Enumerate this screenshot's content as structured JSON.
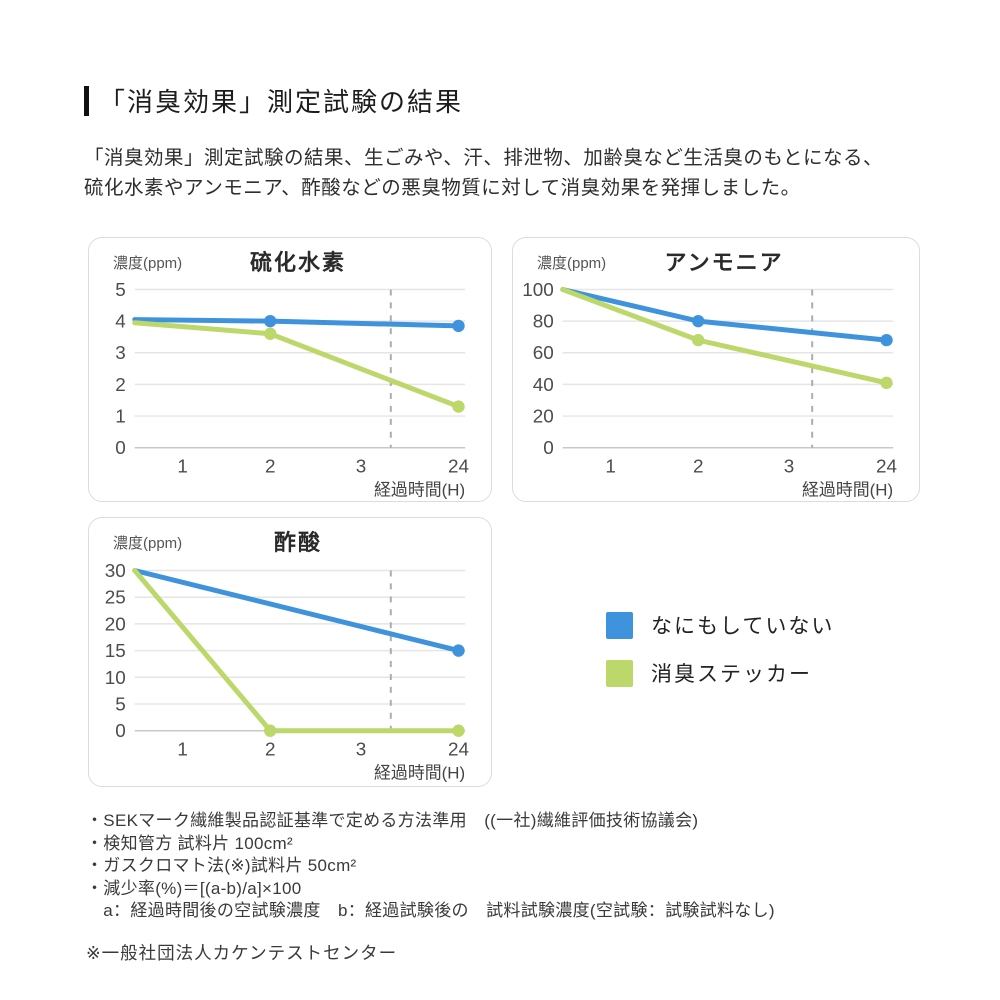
{
  "page": {
    "title": "「消臭効果」測定試験の結果",
    "intro": "「消臭効果」測定試験の結果、生ごみや、汗、排泄物、加齢臭など生活臭のもとになる、\n硫化水素やアンモニア、酢酸などの悪臭物質に対して消臭効果を発揮しました。"
  },
  "colors": {
    "blue": "#3e93dc",
    "green": "#bcd76a",
    "grid": "#e5e5e5",
    "axis": "#c8c8c8",
    "dash": "#adadad"
  },
  "legend": {
    "items": [
      {
        "label": "なにもしていない",
        "color": "blue"
      },
      {
        "label": "消臭ステッカー",
        "color": "green"
      }
    ]
  },
  "chart_data": [
    {
      "type": "line",
      "title": "硫化水素",
      "ylabel": "濃度(ppm)",
      "xlabel": "経過時間(H)",
      "y_ticks": [
        5,
        4,
        3,
        2,
        1,
        0
      ],
      "y_max": 5,
      "x_ticks": [
        "1",
        "2",
        "3",
        "24"
      ],
      "x_tick_f": [
        0.145,
        0.41,
        0.685,
        0.98
      ],
      "dash_f": 0.775,
      "grid": true,
      "series": [
        {
          "name": "なにもしていない",
          "color": "blue",
          "points": [
            {
              "t": 0,
              "v": 4.05,
              "f": 0,
              "dot": false
            },
            {
              "t": 2,
              "v": 4.0,
              "f": 0.41,
              "dot": true
            },
            {
              "t": 24,
              "v": 3.85,
              "f": 0.98,
              "dot": true
            }
          ]
        },
        {
          "name": "消臭ステッカー",
          "color": "green",
          "points": [
            {
              "t": 0,
              "v": 3.95,
              "f": 0,
              "dot": false
            },
            {
              "t": 2,
              "v": 3.6,
              "f": 0.41,
              "dot": true
            },
            {
              "t": 24,
              "v": 1.3,
              "f": 0.98,
              "dot": true
            }
          ]
        }
      ]
    },
    {
      "type": "line",
      "title": "アンモニア",
      "ylabel": "濃度(ppm)",
      "xlabel": "経過時間(H)",
      "y_ticks": [
        100,
        80,
        60,
        40,
        20,
        0
      ],
      "y_max": 100,
      "x_ticks": [
        "1",
        "2",
        "3",
        "24"
      ],
      "x_tick_f": [
        0.145,
        0.41,
        0.685,
        0.98
      ],
      "dash_f": 0.755,
      "grid": true,
      "series": [
        {
          "name": "なにもしていない",
          "color": "blue",
          "points": [
            {
              "t": 0,
              "v": 100,
              "f": 0,
              "dot": false
            },
            {
              "t": 2,
              "v": 80,
              "f": 0.41,
              "dot": true
            },
            {
              "t": 24,
              "v": 68,
              "f": 0.98,
              "dot": true
            }
          ]
        },
        {
          "name": "消臭ステッカー",
          "color": "green",
          "points": [
            {
              "t": 0,
              "v": 100,
              "f": 0,
              "dot": false
            },
            {
              "t": 2,
              "v": 68,
              "f": 0.41,
              "dot": true
            },
            {
              "t": 24,
              "v": 41,
              "f": 0.98,
              "dot": true
            }
          ]
        }
      ]
    },
    {
      "type": "line",
      "title": "酢酸",
      "ylabel": "濃度(ppm)",
      "xlabel": "経過時間(H)",
      "y_ticks": [
        30,
        25,
        20,
        15,
        10,
        5,
        0
      ],
      "y_max": 30,
      "x_ticks": [
        "1",
        "2",
        "3",
        "24"
      ],
      "x_tick_f": [
        0.145,
        0.41,
        0.685,
        0.98
      ],
      "dash_f": 0.775,
      "grid": true,
      "series": [
        {
          "name": "なにもしていない",
          "color": "blue",
          "points": [
            {
              "t": 0,
              "v": 30,
              "f": 0,
              "dot": false
            },
            {
              "t": 24,
              "v": 15,
              "f": 0.98,
              "dot": true
            }
          ]
        },
        {
          "name": "消臭ステッカー",
          "color": "green",
          "points": [
            {
              "t": 0,
              "v": 30,
              "f": 0,
              "dot": false
            },
            {
              "t": 2,
              "v": 0,
              "f": 0.41,
              "dot": true
            },
            {
              "t": 24,
              "v": 0,
              "f": 0.98,
              "dot": true
            }
          ]
        }
      ]
    }
  ],
  "footnotes": {
    "lines": [
      "・SEKマーク繊維製品認証基準で定める方法準用　((一社)繊維評価技術協議会)",
      "・検知管方 試料片 100cm²",
      "・ガスクロマト法(※)試料片 50cm²",
      "・減少率(%)＝[(a-b)/a]×100",
      "　a：経過時間後の空試験濃度　b：経過試験後の　試料試験濃度(空試験：試験試料なし)"
    ]
  },
  "agency_note": "※一般社団法人カケンテストセンター"
}
